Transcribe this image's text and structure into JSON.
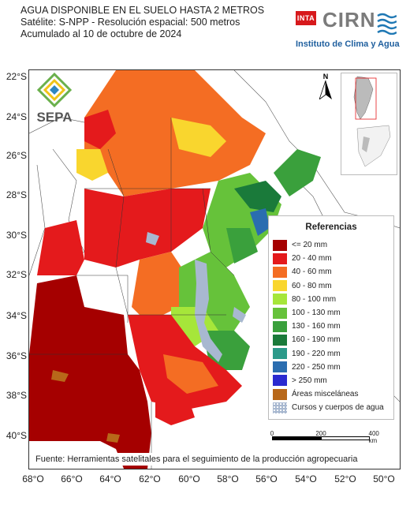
{
  "header": {
    "line1": "AGUA DISPONIBLE EN EL SUELO HASTA 2 METROS",
    "line2": "Satélite: S-NPP - Resolución espacial: 500 metros",
    "line3": "Acumulado al 10 de octubre de 2024"
  },
  "logos": {
    "inta": "INTA",
    "cirn": "CIRN",
    "instituto": "Instituto de Clima y Agua",
    "sepa": "SEPA"
  },
  "north_label": "N",
  "lat_labels": [
    "22°S",
    "24°S",
    "26°S",
    "28°S",
    "30°S",
    "32°S",
    "34°S",
    "36°S",
    "38°S",
    "40°S"
  ],
  "lon_labels": [
    "68°O",
    "66°O",
    "64°O",
    "62°O",
    "60°O",
    "58°O",
    "56°O",
    "54°O",
    "52°O",
    "50°O"
  ],
  "legend": {
    "title": "Referencias",
    "items": [
      {
        "label": "<= 20 mm",
        "color": "#a50000"
      },
      {
        "label": "20 - 40 mm",
        "color": "#e41a1c"
      },
      {
        "label": "40 - 60 mm",
        "color": "#f46d23"
      },
      {
        "label": "60 - 80 mm",
        "color": "#f9d62e"
      },
      {
        "label": "80 - 100 mm",
        "color": "#a6e63a"
      },
      {
        "label": "100 - 130 mm",
        "color": "#66c23a"
      },
      {
        "label": "130 - 160 mm",
        "color": "#3aa03c"
      },
      {
        "label": "160 - 190 mm",
        "color": "#1a7a3a"
      },
      {
        "label": "190 - 220 mm",
        "color": "#2c9a8a"
      },
      {
        "label": "220 - 250 mm",
        "color": "#2a6db0"
      },
      {
        "label": "> 250 mm",
        "color": "#2a2ad0"
      },
      {
        "label": "Áreas misceláneas",
        "color": "#b8681a"
      },
      {
        "label": "Cursos y cuerpos de agua",
        "color": "#a8b8d0"
      }
    ]
  },
  "scale": {
    "labels": [
      "0",
      "200",
      "400 km"
    ]
  },
  "source": "Fuente: Herramientas satelitales para el seguimiento de la producción agropecuaria"
}
